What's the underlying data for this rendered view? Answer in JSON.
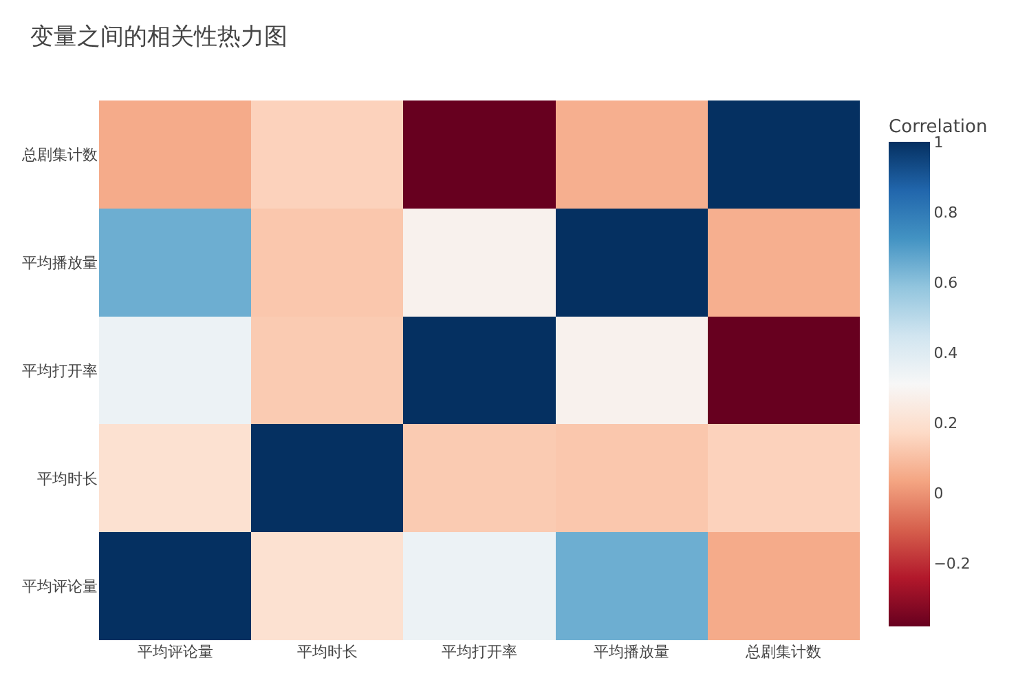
{
  "chart_data": {
    "type": "heatmap",
    "title": "变量之间的相关性热力图",
    "clabel": "Correlation",
    "categories": [
      "平均评论量",
      "平均时长",
      "平均打开率",
      "平均播放量",
      "总剧集计数"
    ],
    "y_categories": [
      "总剧集计数",
      "平均播放量",
      "平均打开率",
      "平均时长",
      "平均评论量"
    ],
    "cells": [
      [
        0.05,
        0.15,
        -0.38,
        0.06,
        1
      ],
      [
        0.65,
        0.12,
        0.28,
        1,
        0.06
      ],
      [
        0.35,
        0.13,
        1,
        0.28,
        -0.38
      ],
      [
        0.2,
        1,
        0.13,
        0.12,
        0.15
      ],
      [
        1,
        0.2,
        0.35,
        0.65,
        0.05
      ]
    ],
    "clim": [
      -0.38,
      1
    ],
    "cticks": [
      {
        "value": -0.2,
        "label": "−0.2"
      },
      0,
      0.2,
      0.4,
      0.6,
      0.8,
      1
    ]
  }
}
